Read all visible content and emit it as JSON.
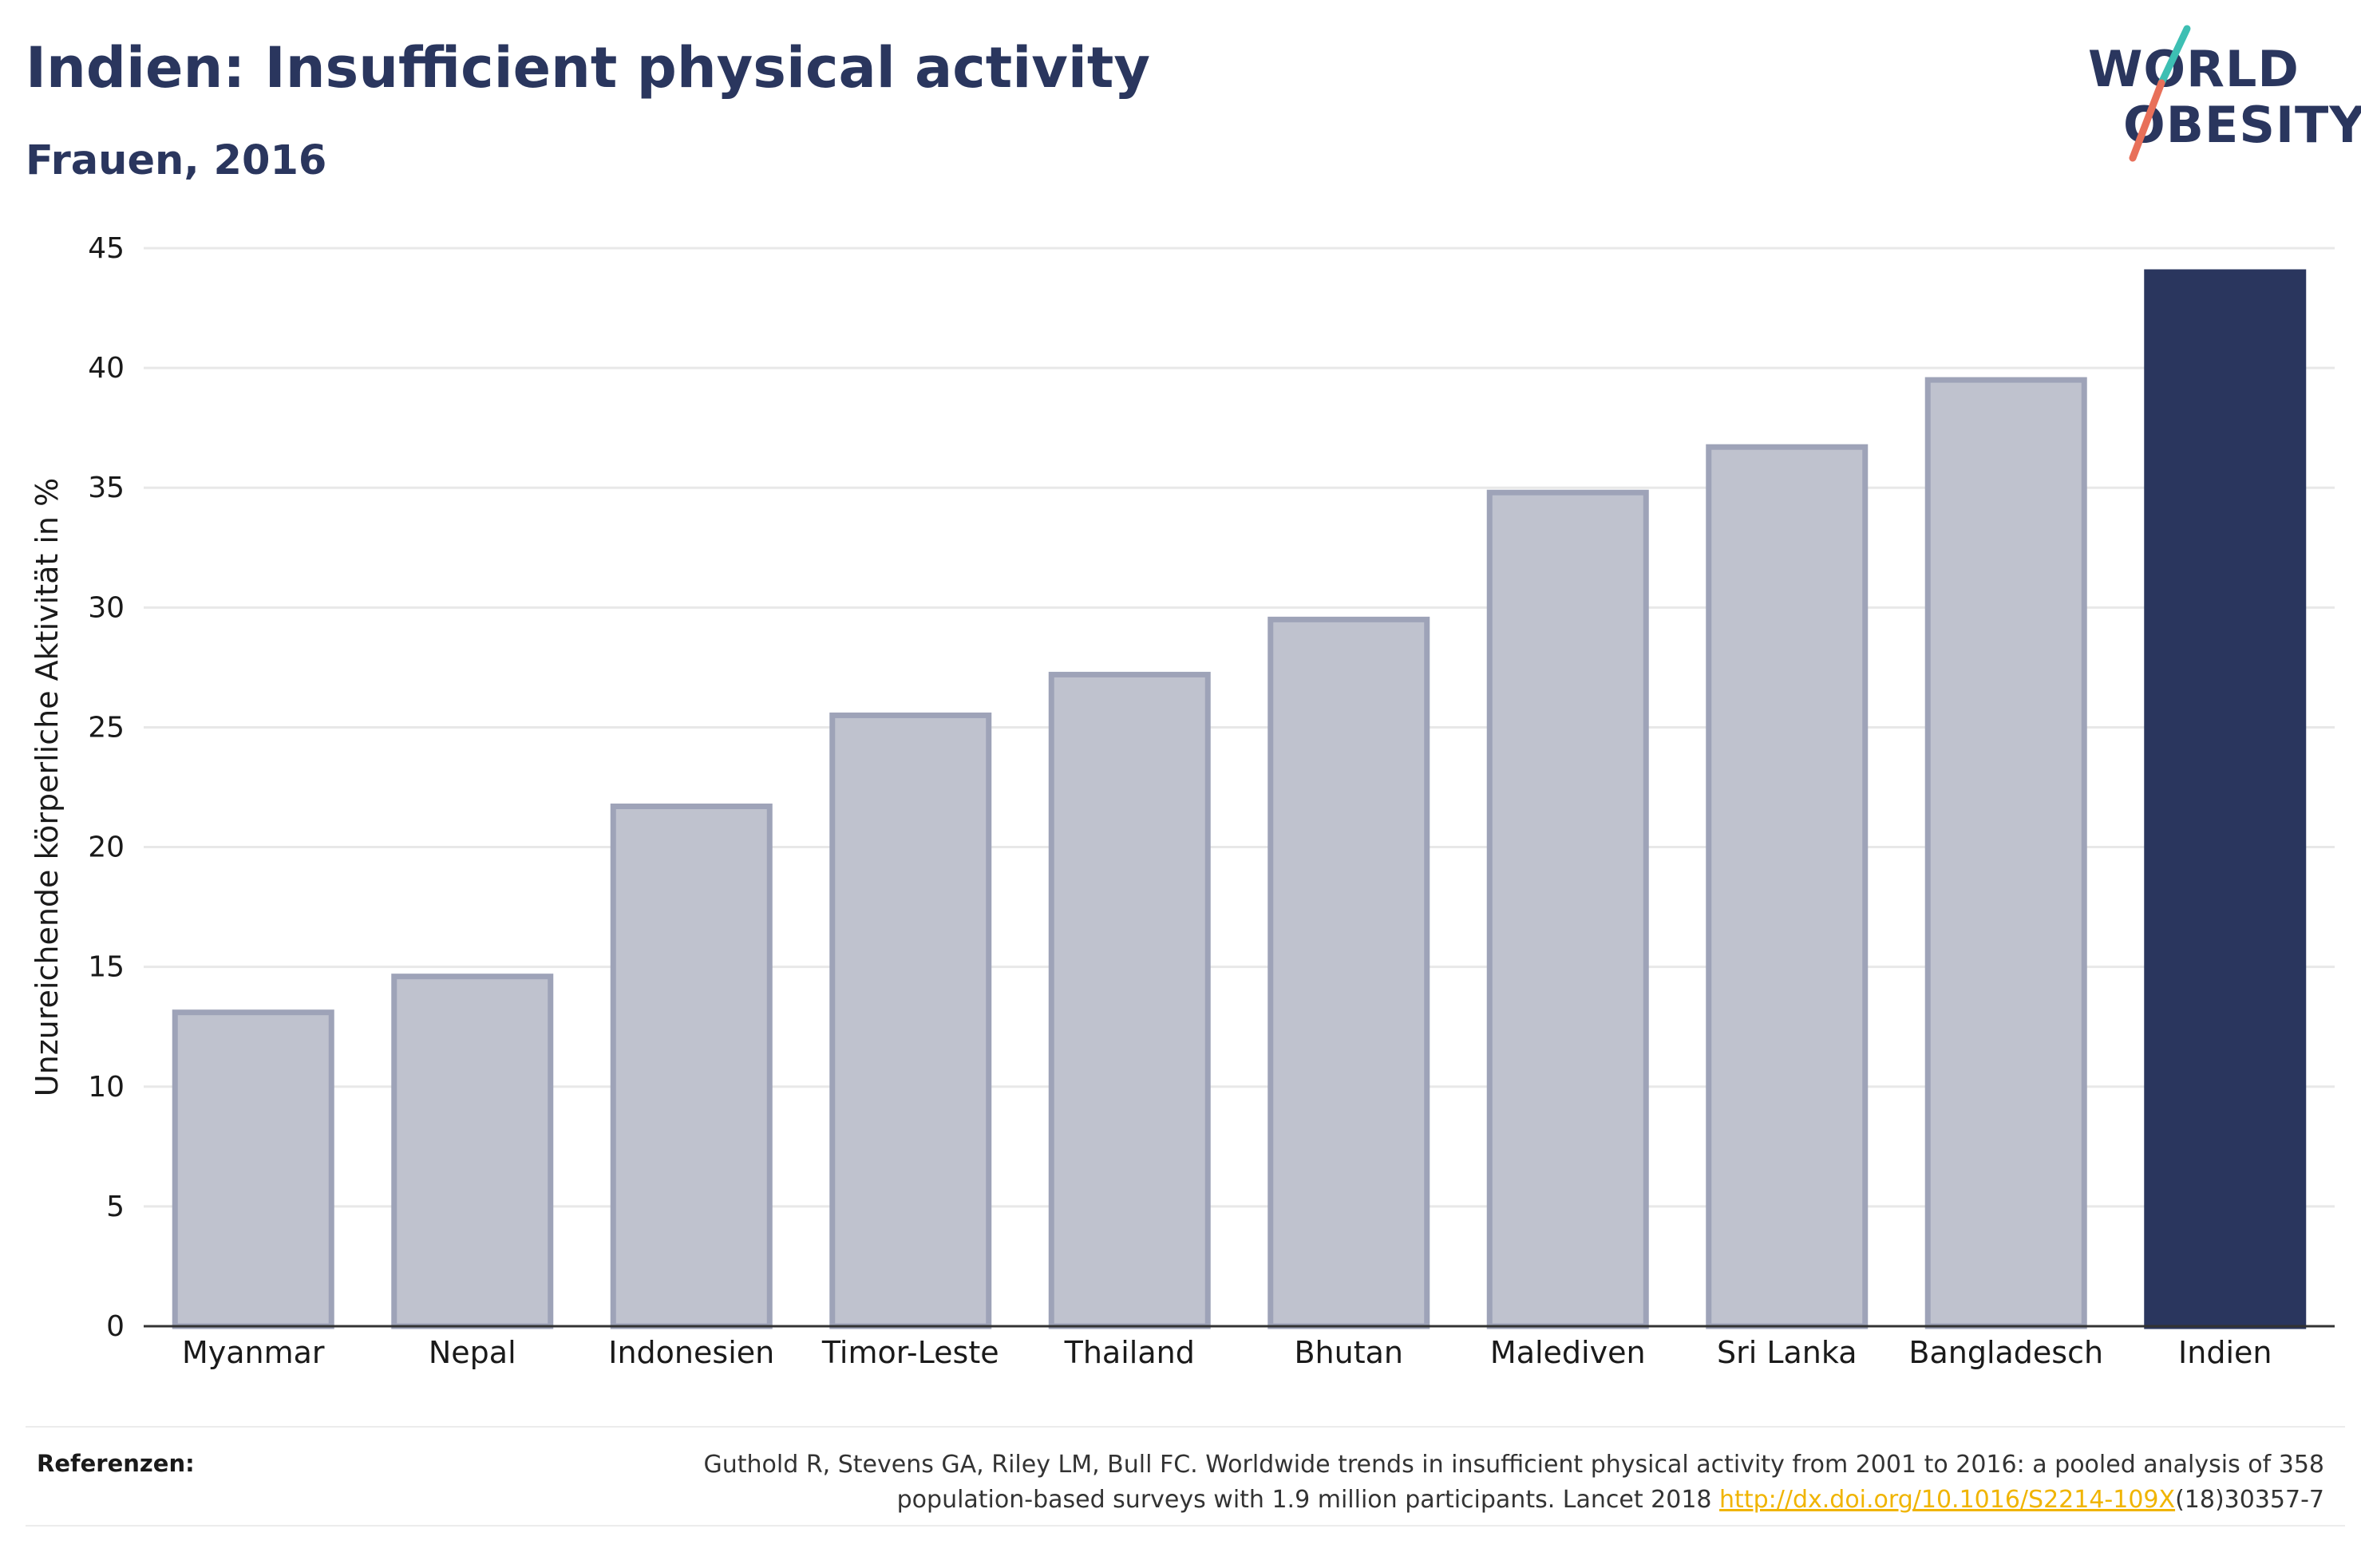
{
  "header": {
    "title": "Indien: Insufficient physical activity",
    "subtitle": "Frauen, 2016"
  },
  "logo": {
    "line1": "WORLD",
    "line2": "OBESITY",
    "slash_colors": [
      "#3dbfb3",
      "#e8705a"
    ]
  },
  "chart_data": {
    "type": "bar",
    "title": "Indien: Insufficient physical activity",
    "subtitle": "Frauen, 2016",
    "xlabel": "",
    "ylabel": "Unzureichende körperliche Aktivität in %",
    "ylim": [
      0,
      45
    ],
    "yticks": [
      0,
      5,
      10,
      15,
      20,
      25,
      30,
      35,
      40,
      45
    ],
    "grid": true,
    "categories": [
      "Myanmar",
      "Nepal",
      "Indonesien",
      "Timor-Leste",
      "Thailand",
      "Bhutan",
      "Malediven",
      "Sri Lanka",
      "Bangladesch",
      "Indien"
    ],
    "values": [
      13.1,
      14.6,
      21.7,
      25.5,
      27.2,
      29.5,
      34.8,
      36.7,
      39.5,
      44.0
    ],
    "highlight": "Indien",
    "colors": {
      "bar_fill": "#bfc2ce",
      "bar_stroke": "#9ea3b8",
      "highlight_fill": "#2a365e",
      "grid": "#e8e8e8",
      "axis": "#333333"
    }
  },
  "footer": {
    "ref_label": "Referenzen:",
    "ref_text_1": "Guthold R, Stevens GA, Riley LM, Bull FC. Worldwide trends in insufficient physical activity from 2001 to 2016: a pooled analysis of 358",
    "ref_text_2": "population-based surveys with 1.9 million participants. Lancet 2018",
    "ref_link": "http://dx.doi.org/10.1016/S2214-109X",
    "ref_text_3": "(18)30357-7",
    "link_color": "#f0b400"
  }
}
